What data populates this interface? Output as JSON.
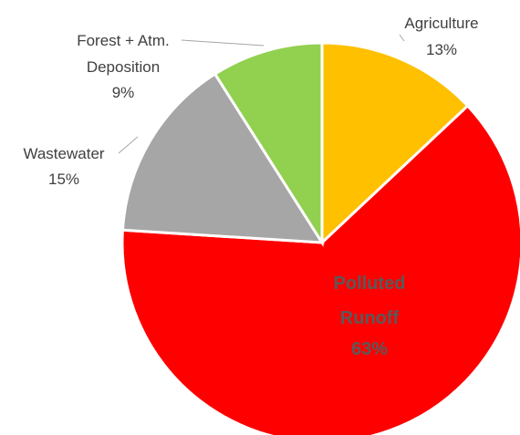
{
  "chart_data": {
    "type": "pie",
    "title": "",
    "slices": [
      {
        "name": "Agriculture",
        "value": 13,
        "label": "13%",
        "color": "#FFC000"
      },
      {
        "name": "Polluted Runoff",
        "value": 63,
        "label": "63%",
        "color": "#FF0000"
      },
      {
        "name": "Wastewater",
        "value": 15,
        "label": "15%",
        "color": "#A6A6A6"
      },
      {
        "name": "Forest + Atm. Deposition",
        "value": 9,
        "label": "9%",
        "color": "#92D050"
      }
    ],
    "start_angle_deg": 0,
    "direction": "clockwise",
    "legend": "none",
    "data_labels": "category name and percentage"
  }
}
